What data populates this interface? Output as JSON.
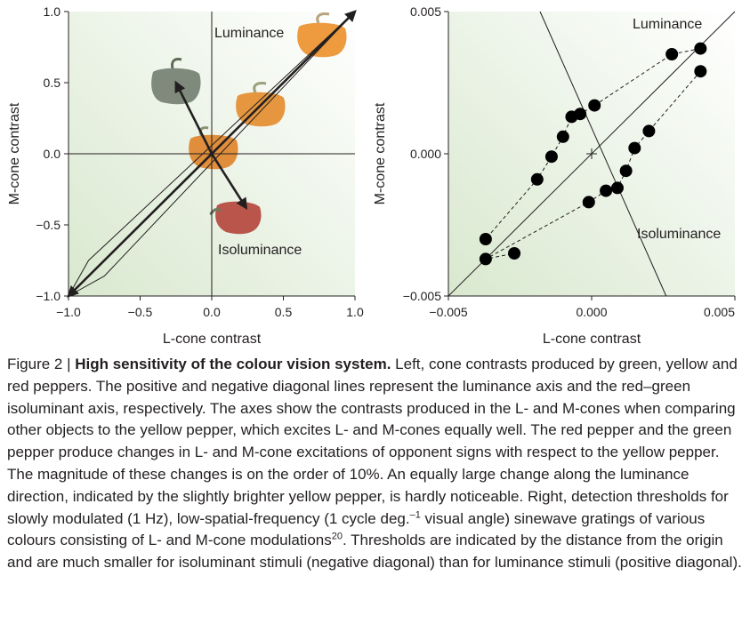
{
  "figure": {
    "left_panel": {
      "xlabel": "L-cone contrast",
      "ylabel": "M-cone contrast",
      "x_ticks": [
        "−1.0",
        "−0.5",
        "0.0",
        "0.5",
        "1.0"
      ],
      "y_ticks": [
        "1.0",
        "0.5",
        "0.0",
        "−0.5",
        "−1.0"
      ],
      "label_luminance": "Luminance",
      "label_isoluminance": "Isoluminance",
      "peppers": [
        {
          "name": "green-pepper",
          "color": "#7f8a7c"
        },
        {
          "name": "yellow-pepper-bright",
          "color": "#ee9b40"
        },
        {
          "name": "yellow-pepper",
          "color": "#e5963f"
        },
        {
          "name": "yellow-pepper-center",
          "color": "#e08e3b"
        },
        {
          "name": "red-pepper",
          "color": "#b9554a"
        }
      ]
    },
    "right_panel": {
      "xlabel": "L-cone contrast",
      "ylabel": "M-cone contrast",
      "x_ticks": [
        "−0.005",
        "0.000",
        "0.005"
      ],
      "y_ticks": [
        "0.005",
        "0.000",
        "−0.005"
      ],
      "label_luminance": "Luminance",
      "label_isoluminance": "Isoluminance"
    }
  },
  "chart_data": [
    {
      "type": "scatter",
      "panel": "left",
      "xlabel": "L-cone contrast",
      "ylabel": "M-cone contrast",
      "xlim": [
        -1.0,
        1.0
      ],
      "ylim": [
        -1.0,
        1.0
      ],
      "x_ticks": [
        -1.0,
        -0.5,
        0.0,
        0.5,
        1.0
      ],
      "y_ticks": [
        -1.0,
        -0.5,
        0.0,
        0.5,
        1.0
      ],
      "arrows": [
        {
          "from": [
            -1.0,
            -1.0
          ],
          "to": [
            1.0,
            1.0
          ]
        },
        {
          "from": [
            0.0,
            0.0
          ],
          "to": [
            -0.25,
            0.5
          ]
        },
        {
          "from": [
            0.0,
            0.0
          ],
          "to": [
            0.24,
            -0.38
          ]
        }
      ],
      "outline": [
        [
          -1.0,
          -1.0
        ],
        [
          -0.75,
          -0.86
        ],
        [
          1.0,
          1.0
        ],
        [
          -0.86,
          -0.75
        ],
        [
          -1.0,
          -1.0
        ]
      ],
      "annotations": [
        "Luminance",
        "Isoluminance"
      ]
    },
    {
      "type": "scatter",
      "panel": "right",
      "xlabel": "L-cone contrast",
      "ylabel": "M-cone contrast",
      "xlim": [
        -0.005,
        0.005
      ],
      "ylim": [
        -0.005,
        0.005
      ],
      "x_ticks": [
        -0.005,
        0.0,
        0.005
      ],
      "y_ticks": [
        -0.005,
        0.0,
        0.005
      ],
      "lines": [
        {
          "name": "Luminance",
          "from": [
            -0.005,
            -0.005
          ],
          "to": [
            0.005,
            0.005
          ]
        },
        {
          "name": "Isoluminance",
          "from": [
            -0.0018,
            0.005
          ],
          "to": [
            0.0026,
            -0.005
          ]
        }
      ],
      "series": [
        {
          "x": [
            0.0038,
            0.0028,
            0.0001,
            -0.0004,
            -0.0007,
            -0.001,
            -0.0014,
            -0.0019,
            -0.0037
          ],
          "y": [
            0.0037,
            0.0035,
            0.0017,
            0.0014,
            0.0013,
            0.0006,
            -0.0001,
            -0.0009,
            -0.003
          ]
        },
        {
          "x": [
            0.0038,
            0.002,
            0.0015,
            0.0012,
            0.0009,
            0.0005,
            -0.0001,
            -0.0037,
            -0.0027
          ],
          "y": [
            0.0029,
            0.0008,
            0.0002,
            -0.0006,
            -0.0012,
            -0.0013,
            -0.0017,
            -0.0037,
            -0.0035
          ]
        }
      ]
    }
  ],
  "caption": {
    "prefix": "Figure 2 | ",
    "title": "High sensitivity of the colour vision system.",
    "body_part1": " Left, cone contrasts produced by green, yellow and red peppers. The positive and negative diagonal lines represent the luminance axis and the red–green isoluminant axis, respectively. The axes show the contrasts produced in the L- and M-cones when comparing other objects to the yellow pepper, which excites L- and M-cones equally well. The red pepper and the green pepper produce changes in L- and M-cone excitations of opponent signs with respect to the yellow pepper. The magnitude of these changes is on the order of 10%. An equally large change along the luminance direction, indicated by the slightly brighter yellow pepper, is hardly noticeable. Right, detection thresholds for slowly modulated (1 Hz), low-spatial-frequency (1 cycle deg.",
    "superscript_1": "–1",
    "body_part2": " visual angle) sinewave gratings of various colours consisting of L- and M-cone modulations",
    "superscript_2": "20",
    "body_part3": ". Thresholds are indicated by the distance from the origin and are much smaller for isoluminant stimuli (negative diagonal) than for luminance stimuli (positive diagonal)."
  }
}
